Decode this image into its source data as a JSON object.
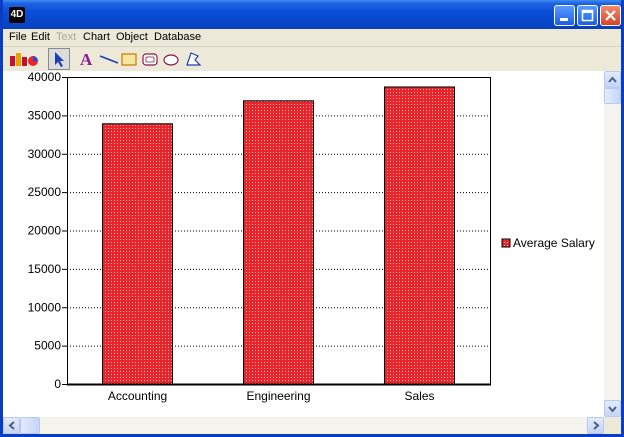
{
  "window": {
    "app_icon_label": "4D"
  },
  "menubar": {
    "items": [
      {
        "label": "File",
        "enabled": true
      },
      {
        "label": "Edit",
        "enabled": true
      },
      {
        "label": "Text",
        "enabled": false
      },
      {
        "label": "Chart",
        "enabled": true
      },
      {
        "label": "Object",
        "enabled": true
      },
      {
        "label": "Database",
        "enabled": true
      }
    ]
  },
  "toolbar": {
    "tools": [
      {
        "name": "chart-type-icon",
        "selected": false
      },
      {
        "name": "arrow-pointer-icon",
        "selected": true
      },
      {
        "name": "text-tool-icon",
        "selected": false
      },
      {
        "name": "line-tool-icon",
        "selected": false
      },
      {
        "name": "rectangle-tool-icon",
        "selected": false
      },
      {
        "name": "rounded-rectangle-tool-icon",
        "selected": false
      },
      {
        "name": "oval-tool-icon",
        "selected": false
      },
      {
        "name": "polygon-tool-icon",
        "selected": false
      }
    ]
  },
  "colors": {
    "bar_fill": "#e8252a",
    "bar_stroke": "#000000",
    "titlebar": "#0a4ed8"
  },
  "chart_data": {
    "type": "bar",
    "categories": [
      "Accounting",
      "Engineering",
      "Sales"
    ],
    "series": [
      {
        "name": "Average Salary",
        "values": [
          33900,
          36900,
          38700
        ]
      }
    ],
    "yticks": [
      "0",
      "5000",
      "10000",
      "15000",
      "20000",
      "25000",
      "30000",
      "35000",
      "40000"
    ],
    "ylim": [
      0,
      40000
    ],
    "grid": "horizontal dotted",
    "legend_position": "right"
  }
}
